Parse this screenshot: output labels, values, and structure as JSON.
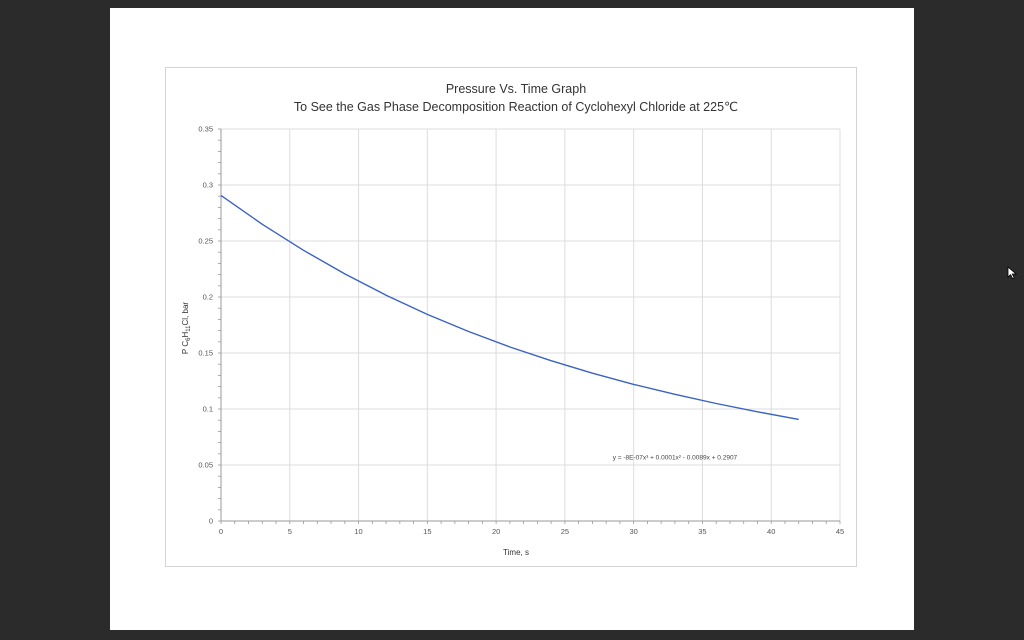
{
  "chart_data": {
    "type": "line",
    "title": "Pressure Vs. Time Graph",
    "subtitle": "To See the Gas Phase Decomposition Reaction of Cyclohexyl Chloride at 225℃",
    "xlabel": "Time, s",
    "ylabel": "P C6H11Cl, bar",
    "ylabel_parts": {
      "prefix": "P C",
      "sub1": "6",
      "mid": "H",
      "sub2": "11",
      "suffix": "Cl, bar"
    },
    "xlim": [
      0,
      45
    ],
    "ylim": [
      0,
      0.35
    ],
    "x_ticks": [
      0,
      5,
      10,
      15,
      20,
      25,
      30,
      35,
      40,
      45
    ],
    "y_ticks": [
      0,
      0.05,
      0.1,
      0.15,
      0.2,
      0.25,
      0.3,
      0.35
    ],
    "x_tick_labels": [
      "0",
      "5",
      "10",
      "15",
      "20",
      "25",
      "30",
      "35",
      "40",
      "45"
    ],
    "y_tick_labels": [
      "0",
      "0.05",
      "0.1",
      "0.15",
      "0.2",
      "0.25",
      "0.3",
      "0.35"
    ],
    "grid": true,
    "series": [
      {
        "color": "#3a62c4",
        "x": [
          0,
          3,
          6,
          9,
          12,
          15,
          18,
          21,
          24,
          27,
          30,
          33,
          36,
          39,
          42
        ],
        "y": [
          0.2907,
          0.2649,
          0.2417,
          0.2206,
          0.2016,
          0.1845,
          0.1692,
          0.1554,
          0.1431,
          0.132,
          0.122,
          0.1131,
          0.1049,
          0.0975,
          0.0907
        ]
      }
    ],
    "annotations": [
      {
        "text": "y = -8E-07x³ + 0.0001x² - 0.0089x + 0.2907",
        "x": 33,
        "y": 0.055
      }
    ]
  },
  "ui": {
    "cursor_icon": "mouse-pointer-icon"
  }
}
